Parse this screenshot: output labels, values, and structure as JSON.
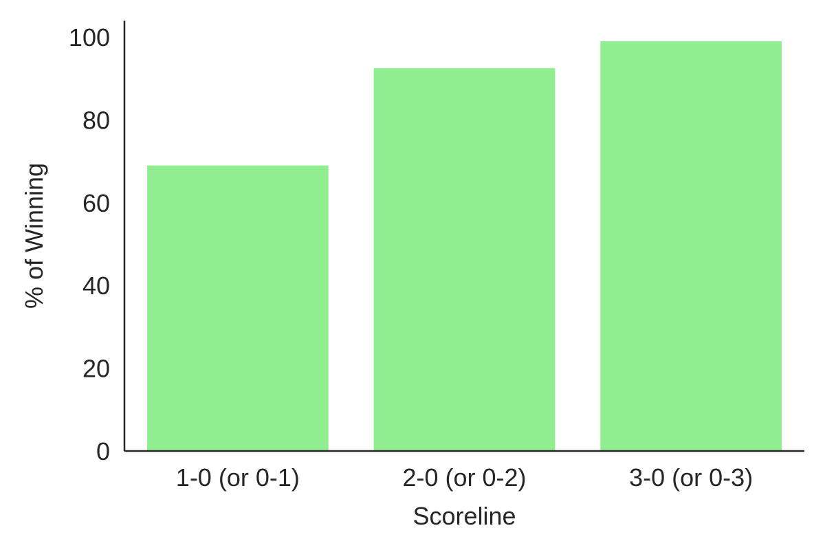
{
  "chart_data": {
    "type": "bar",
    "categories": [
      "1-0 (or 0-1)",
      "2-0 (or 0-2)",
      "3-0 (or 0-3)"
    ],
    "values": [
      69,
      92.5,
      99
    ],
    "title": "",
    "xlabel": "Scoreline",
    "ylabel": "% of Winning",
    "ylim": [
      0,
      104
    ],
    "yticks": [
      0,
      20,
      40,
      60,
      80,
      100
    ],
    "grid": false,
    "legend": "none",
    "bar_color": "#90EE90",
    "axis_color": "#262626"
  }
}
